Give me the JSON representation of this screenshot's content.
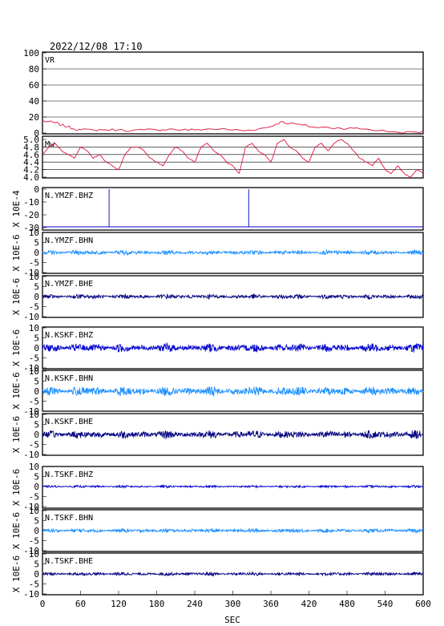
{
  "header": {
    "timestamp": "2022/12/08 17:10"
  },
  "xaxis": {
    "label": "SEC",
    "ticks": [
      "0",
      "60",
      "120",
      "180",
      "240",
      "300",
      "360",
      "420",
      "480",
      "540",
      "600"
    ]
  },
  "colors": {
    "red": "#dc143c",
    "blue": "#0000cd",
    "lightblue": "#1e90ff",
    "navy": "#000080"
  },
  "panels": [
    {
      "name": "VR",
      "yticks": [
        "0",
        "20",
        "40",
        "60",
        "80",
        "100"
      ]
    },
    {
      "name": "Mw",
      "yticks": [
        "4.0",
        "4.2",
        "4.4",
        "4.6",
        "4.8",
        "5.0"
      ]
    },
    {
      "name": "N.YMZF.BHZ",
      "ylabel": "X 10E-4",
      "yticks": [
        "-30",
        "-20",
        "-10",
        "0"
      ]
    },
    {
      "name": "N.YMZF.BHN",
      "ylabel": "X 10E-6",
      "yticks": [
        "-10",
        "-5",
        "0",
        "5",
        "10"
      ]
    },
    {
      "name": "N.YMZF.BHE",
      "ylabel": "X 10E-6",
      "yticks": [
        "-10",
        "-5",
        "0",
        "5",
        "10"
      ]
    },
    {
      "name": "N.KSKF.BHZ",
      "ylabel": "X 10E-6",
      "yticks": [
        "-10",
        "-5",
        "0",
        "5",
        "10"
      ]
    },
    {
      "name": "N.KSKF.BHN",
      "ylabel": "X 10E-6",
      "yticks": [
        "-10",
        "-5",
        "0",
        "5",
        "10"
      ]
    },
    {
      "name": "N.KSKF.BHE",
      "ylabel": "X 10E-6",
      "yticks": [
        "-10",
        "-5",
        "0",
        "5",
        "10"
      ]
    },
    {
      "name": "N.TSKF.BHZ",
      "ylabel": "X 10E-6",
      "yticks": [
        "-10",
        "-5",
        "0",
        "5",
        "10"
      ]
    },
    {
      "name": "N.TSKF.BHN",
      "ylabel": "X 10E-6",
      "yticks": [
        "-10",
        "-5",
        "0",
        "5",
        "10"
      ]
    },
    {
      "name": "N.TSKF.BHE",
      "ylabel": "X 10E-6",
      "yticks": [
        "-10",
        "-5",
        "0",
        "5",
        "10"
      ]
    }
  ],
  "chart_data": [
    {
      "type": "line",
      "title": "VR",
      "ylim": [
        0,
        100
      ],
      "grid": true,
      "color": "#dc143c",
      "x": [
        0,
        10,
        20,
        30,
        40,
        50,
        60,
        80,
        100,
        120,
        140,
        160,
        180,
        200,
        220,
        240,
        260,
        280,
        300,
        320,
        340,
        360,
        375,
        390,
        410,
        430,
        450,
        470,
        490,
        510,
        530,
        560,
        590,
        600
      ],
      "y": [
        15,
        14,
        13,
        10,
        8,
        5,
        4,
        4,
        4,
        4,
        3,
        4,
        4,
        5,
        4,
        4,
        5,
        5,
        4,
        3,
        5,
        8,
        14,
        12,
        10,
        7,
        7,
        6,
        6,
        5,
        3,
        1,
        1,
        1
      ]
    },
    {
      "type": "line",
      "title": "Mw",
      "ylim": [
        4.0,
        5.0
      ],
      "grid": true,
      "color": "#dc143c",
      "x": [
        0,
        10,
        20,
        30,
        40,
        50,
        60,
        70,
        80,
        90,
        100,
        110,
        120,
        130,
        140,
        150,
        160,
        170,
        180,
        190,
        200,
        210,
        220,
        230,
        240,
        250,
        260,
        270,
        280,
        290,
        300,
        310,
        320,
        330,
        340,
        350,
        360,
        370,
        380,
        390,
        400,
        410,
        420,
        430,
        440,
        450,
        460,
        470,
        480,
        490,
        500,
        510,
        520,
        530,
        540,
        550,
        560,
        570,
        580,
        590,
        600
      ],
      "y": [
        4.6,
        4.8,
        4.9,
        4.7,
        4.6,
        4.5,
        4.8,
        4.7,
        4.5,
        4.6,
        4.4,
        4.3,
        4.2,
        4.6,
        4.8,
        4.8,
        4.7,
        4.5,
        4.4,
        4.3,
        4.6,
        4.8,
        4.7,
        4.5,
        4.4,
        4.8,
        4.9,
        4.7,
        4.6,
        4.4,
        4.3,
        4.1,
        4.8,
        4.9,
        4.7,
        4.6,
        4.4,
        4.9,
        5.0,
        4.8,
        4.7,
        4.5,
        4.4,
        4.8,
        4.9,
        4.7,
        4.9,
        5.0,
        4.9,
        4.7,
        4.5,
        4.4,
        4.3,
        4.5,
        4.2,
        4.1,
        4.3,
        4.1,
        4.0,
        4.2,
        4.1
      ]
    },
    {
      "type": "line",
      "title": "N.YMZF.BHZ",
      "ylim": [
        -30,
        0
      ],
      "color": "#0000cd",
      "baseline": -30,
      "spikes_x": [
        105,
        325
      ]
    },
    {
      "type": "line",
      "title": "N.YMZF.BHN",
      "ylim": [
        -10,
        10
      ],
      "color": "#1e90ff",
      "amplitude": 0.8
    },
    {
      "type": "line",
      "title": "N.YMZF.BHE",
      "ylim": [
        -10,
        10
      ],
      "color": "#000080",
      "amplitude": 0.8
    },
    {
      "type": "line",
      "title": "N.KSKF.BHZ",
      "ylim": [
        -10,
        10
      ],
      "color": "#0000cd",
      "amplitude": 1.5
    },
    {
      "type": "line",
      "title": "N.KSKF.BHN",
      "ylim": [
        -10,
        10
      ],
      "color": "#1e90ff",
      "amplitude": 1.6
    },
    {
      "type": "line",
      "title": "N.KSKF.BHE",
      "ylim": [
        -10,
        10
      ],
      "color": "#000080",
      "amplitude": 1.4
    },
    {
      "type": "line",
      "title": "N.TSKF.BHZ",
      "ylim": [
        -10,
        10
      ],
      "color": "#0000cd",
      "amplitude": 0.4
    },
    {
      "type": "line",
      "title": "N.TSKF.BHN",
      "ylim": [
        -10,
        10
      ],
      "color": "#1e90ff",
      "amplitude": 0.7
    },
    {
      "type": "line",
      "title": "N.TSKF.BHE",
      "ylim": [
        -10,
        10
      ],
      "color": "#000080",
      "amplitude": 0.6
    }
  ]
}
